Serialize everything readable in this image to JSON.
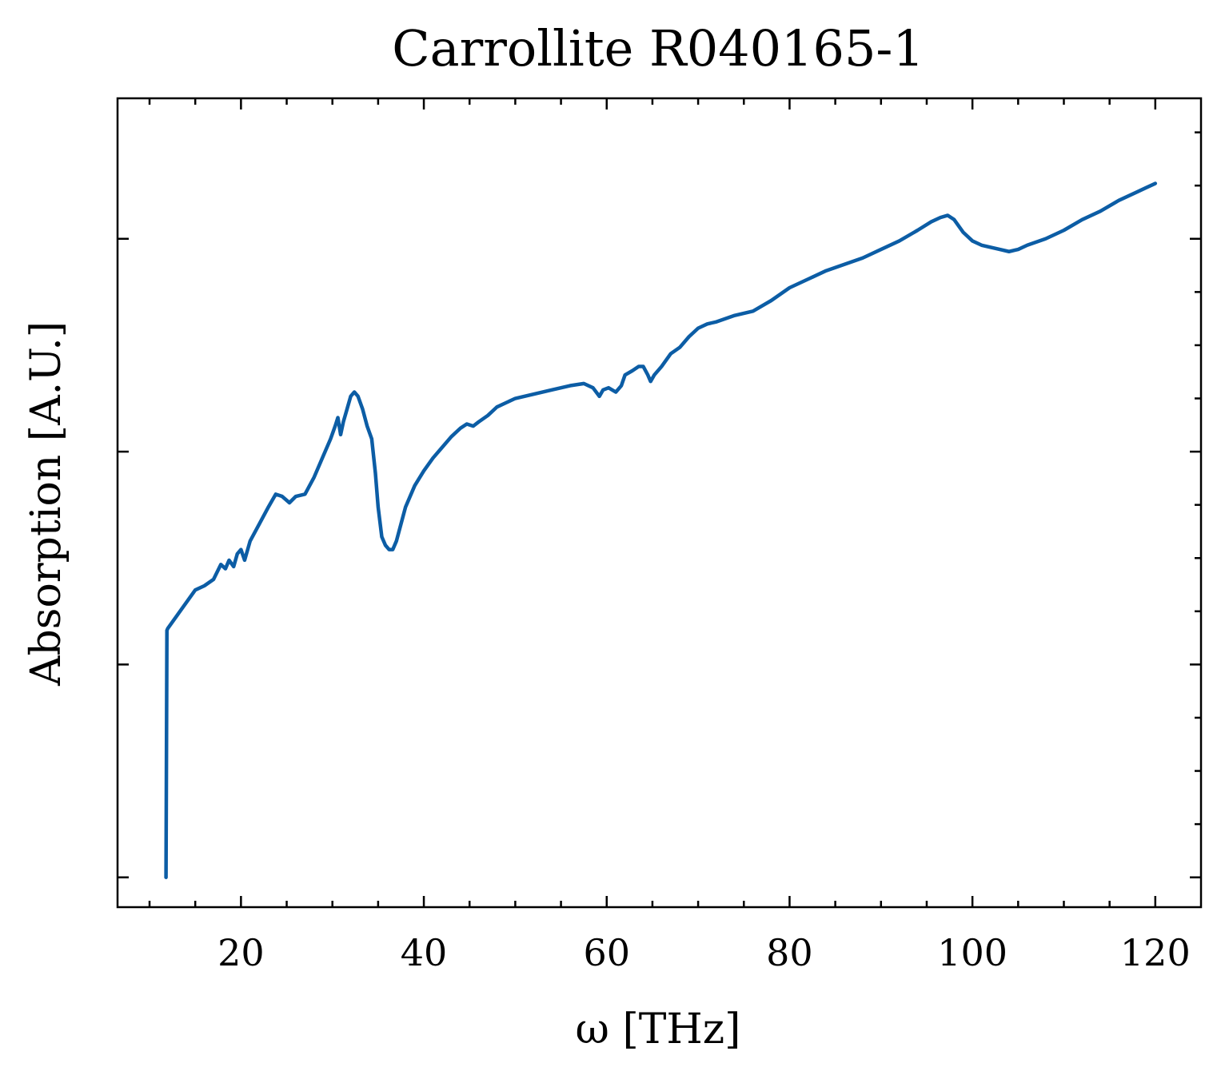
{
  "chart_data": {
    "type": "line",
    "title": "Carrollite R040165-1",
    "xlabel": "ω [THz]",
    "ylabel": "Absorption [A.U.]",
    "xlim": [
      6.5,
      125
    ],
    "ylim": [
      -0.07,
      1.83
    ],
    "x_ticks": [
      20,
      40,
      60,
      80,
      100,
      120
    ],
    "x_minor_ticks": [
      10,
      15,
      25,
      30,
      35,
      45,
      50,
      55,
      65,
      70,
      75,
      85,
      90,
      95,
      105,
      110,
      115
    ],
    "y_ticks": [
      0,
      0.5,
      1.0,
      1.5
    ],
    "y_minor_ticks": [
      0.125,
      0.25,
      0.375,
      0.625,
      0.75,
      0.875,
      1.125,
      1.25,
      1.375,
      1.625,
      1.75
    ],
    "y_tick_labels_visible": false,
    "grid": false,
    "ticks_direction": "in",
    "series": [
      {
        "color": "#0C5DA5",
        "x": [
          11.8,
          11.9,
          12.0,
          12.5,
          13.0,
          14.0,
          15.0,
          16.0,
          17.0,
          17.8,
          18.3,
          18.7,
          19.2,
          19.6,
          20.0,
          20.4,
          21.0,
          22.0,
          23.0,
          23.8,
          24.5,
          25.3,
          26.0,
          27.0,
          28.0,
          29.0,
          29.8,
          30.3,
          30.6,
          30.9,
          31.2,
          31.6,
          32.0,
          32.4,
          32.8,
          33.3,
          33.8,
          34.3,
          34.7,
          35.0,
          35.4,
          35.8,
          36.2,
          36.6,
          37.0,
          37.5,
          38.0,
          39.0,
          40.0,
          41.0,
          42.0,
          43.0,
          44.0,
          44.7,
          45.4,
          46.0,
          47.0,
          48.0,
          50.0,
          52.0,
          54.0,
          56.0,
          57.5,
          58.5,
          59.2,
          59.6,
          60.2,
          61.0,
          61.6,
          62.0,
          62.8,
          63.5,
          64.0,
          64.5,
          64.8,
          65.2,
          66.0,
          67.0,
          68.0,
          69.0,
          70.0,
          71.0,
          72.0,
          74.0,
          76.0,
          78.0,
          80.0,
          82.0,
          84.0,
          86.0,
          88.0,
          90.0,
          92.0,
          94.0,
          95.5,
          96.5,
          97.3,
          98.0,
          99.0,
          100.0,
          101.0,
          102.0,
          103.0,
          104.0,
          105.0,
          106.0,
          108.0,
          110.0,
          112.0,
          114.0,
          116.0,
          118.0,
          119.0,
          120.0
        ],
        "y": [
          0.0,
          0.58,
          0.585,
          0.6,
          0.615,
          0.645,
          0.675,
          0.685,
          0.7,
          0.735,
          0.725,
          0.745,
          0.73,
          0.76,
          0.77,
          0.745,
          0.79,
          0.83,
          0.87,
          0.9,
          0.895,
          0.88,
          0.895,
          0.9,
          0.94,
          0.99,
          1.03,
          1.06,
          1.08,
          1.04,
          1.07,
          1.1,
          1.13,
          1.14,
          1.13,
          1.1,
          1.06,
          1.03,
          0.95,
          0.87,
          0.8,
          0.78,
          0.77,
          0.77,
          0.79,
          0.83,
          0.87,
          0.92,
          0.955,
          0.985,
          1.01,
          1.035,
          1.055,
          1.065,
          1.06,
          1.07,
          1.085,
          1.105,
          1.125,
          1.135,
          1.145,
          1.155,
          1.16,
          1.15,
          1.13,
          1.145,
          1.15,
          1.14,
          1.155,
          1.18,
          1.19,
          1.2,
          1.2,
          1.18,
          1.165,
          1.18,
          1.2,
          1.23,
          1.245,
          1.27,
          1.29,
          1.3,
          1.305,
          1.32,
          1.33,
          1.355,
          1.385,
          1.405,
          1.425,
          1.44,
          1.455,
          1.475,
          1.495,
          1.52,
          1.54,
          1.55,
          1.555,
          1.545,
          1.515,
          1.495,
          1.485,
          1.48,
          1.475,
          1.47,
          1.475,
          1.485,
          1.5,
          1.52,
          1.545,
          1.565,
          1.59,
          1.61,
          1.62,
          1.63
        ]
      }
    ]
  }
}
